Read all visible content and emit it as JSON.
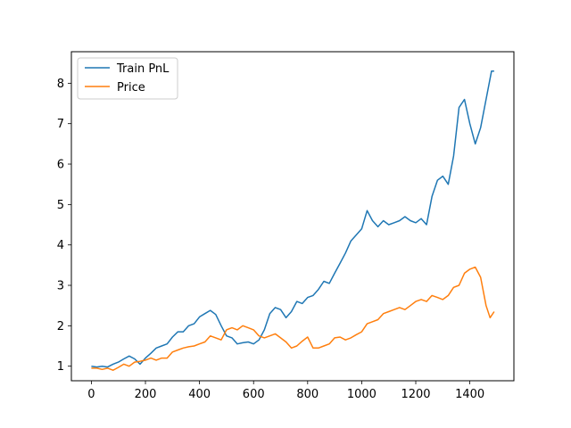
{
  "chart_data": {
    "type": "line",
    "title": "",
    "xlabel": "",
    "ylabel": "",
    "xlim": [
      -74,
      1563
    ],
    "ylim": [
      0.64,
      8.78
    ],
    "xticks": [
      0,
      200,
      400,
      600,
      800,
      1000,
      1200,
      1400
    ],
    "yticks": [
      1,
      2,
      3,
      4,
      5,
      6,
      7,
      8
    ],
    "grid": false,
    "legend_position": "top-left",
    "series": [
      {
        "name": "Train PnL",
        "color": "#1f77b4",
        "points": [
          [
            0,
            1.0
          ],
          [
            20,
            0.98
          ],
          [
            40,
            1.0
          ],
          [
            60,
            0.98
          ],
          [
            80,
            1.05
          ],
          [
            100,
            1.1
          ],
          [
            120,
            1.18
          ],
          [
            140,
            1.25
          ],
          [
            160,
            1.18
          ],
          [
            180,
            1.05
          ],
          [
            200,
            1.2
          ],
          [
            220,
            1.32
          ],
          [
            240,
            1.45
          ],
          [
            260,
            1.5
          ],
          [
            280,
            1.55
          ],
          [
            300,
            1.72
          ],
          [
            320,
            1.85
          ],
          [
            340,
            1.85
          ],
          [
            360,
            2.0
          ],
          [
            380,
            2.05
          ],
          [
            400,
            2.22
          ],
          [
            420,
            2.3
          ],
          [
            440,
            2.38
          ],
          [
            460,
            2.28
          ],
          [
            480,
            2.0
          ],
          [
            500,
            1.75
          ],
          [
            520,
            1.7
          ],
          [
            540,
            1.55
          ],
          [
            560,
            1.58
          ],
          [
            580,
            1.6
          ],
          [
            600,
            1.55
          ],
          [
            620,
            1.65
          ],
          [
            640,
            1.9
          ],
          [
            660,
            2.3
          ],
          [
            680,
            2.45
          ],
          [
            700,
            2.4
          ],
          [
            720,
            2.2
          ],
          [
            740,
            2.35
          ],
          [
            760,
            2.6
          ],
          [
            780,
            2.55
          ],
          [
            800,
            2.7
          ],
          [
            820,
            2.75
          ],
          [
            840,
            2.9
          ],
          [
            860,
            3.1
          ],
          [
            880,
            3.05
          ],
          [
            900,
            3.3
          ],
          [
            920,
            3.55
          ],
          [
            940,
            3.8
          ],
          [
            960,
            4.1
          ],
          [
            980,
            4.25
          ],
          [
            1000,
            4.4
          ],
          [
            1020,
            4.85
          ],
          [
            1040,
            4.6
          ],
          [
            1060,
            4.45
          ],
          [
            1080,
            4.6
          ],
          [
            1100,
            4.5
          ],
          [
            1120,
            4.55
          ],
          [
            1140,
            4.6
          ],
          [
            1160,
            4.7
          ],
          [
            1180,
            4.6
          ],
          [
            1200,
            4.55
          ],
          [
            1220,
            4.65
          ],
          [
            1240,
            4.5
          ],
          [
            1260,
            5.2
          ],
          [
            1280,
            5.6
          ],
          [
            1300,
            5.7
          ],
          [
            1320,
            5.5
          ],
          [
            1340,
            6.2
          ],
          [
            1360,
            7.4
          ],
          [
            1380,
            7.6
          ],
          [
            1400,
            7.0
          ],
          [
            1420,
            6.5
          ],
          [
            1440,
            6.9
          ],
          [
            1460,
            7.6
          ],
          [
            1480,
            8.3
          ],
          [
            1490,
            8.3
          ]
        ]
      },
      {
        "name": "Price",
        "color": "#ff7f0e",
        "points": [
          [
            0,
            0.95
          ],
          [
            20,
            0.95
          ],
          [
            40,
            0.92
          ],
          [
            60,
            0.95
          ],
          [
            80,
            0.9
          ],
          [
            100,
            0.97
          ],
          [
            120,
            1.05
          ],
          [
            140,
            1.0
          ],
          [
            160,
            1.1
          ],
          [
            180,
            1.12
          ],
          [
            200,
            1.15
          ],
          [
            220,
            1.2
          ],
          [
            240,
            1.15
          ],
          [
            260,
            1.2
          ],
          [
            280,
            1.2
          ],
          [
            300,
            1.35
          ],
          [
            320,
            1.4
          ],
          [
            340,
            1.45
          ],
          [
            360,
            1.48
          ],
          [
            380,
            1.5
          ],
          [
            400,
            1.55
          ],
          [
            420,
            1.6
          ],
          [
            440,
            1.75
          ],
          [
            460,
            1.7
          ],
          [
            480,
            1.65
          ],
          [
            500,
            1.9
          ],
          [
            520,
            1.95
          ],
          [
            540,
            1.9
          ],
          [
            560,
            2.0
          ],
          [
            580,
            1.95
          ],
          [
            600,
            1.9
          ],
          [
            620,
            1.75
          ],
          [
            640,
            1.7
          ],
          [
            660,
            1.75
          ],
          [
            680,
            1.8
          ],
          [
            700,
            1.7
          ],
          [
            720,
            1.6
          ],
          [
            740,
            1.45
          ],
          [
            760,
            1.5
          ],
          [
            780,
            1.62
          ],
          [
            800,
            1.72
          ],
          [
            820,
            1.45
          ],
          [
            840,
            1.45
          ],
          [
            860,
            1.5
          ],
          [
            880,
            1.55
          ],
          [
            900,
            1.7
          ],
          [
            920,
            1.72
          ],
          [
            940,
            1.65
          ],
          [
            960,
            1.7
          ],
          [
            980,
            1.78
          ],
          [
            1000,
            1.85
          ],
          [
            1020,
            2.05
          ],
          [
            1040,
            2.1
          ],
          [
            1060,
            2.15
          ],
          [
            1080,
            2.3
          ],
          [
            1100,
            2.35
          ],
          [
            1120,
            2.4
          ],
          [
            1140,
            2.45
          ],
          [
            1160,
            2.4
          ],
          [
            1180,
            2.5
          ],
          [
            1200,
            2.6
          ],
          [
            1220,
            2.65
          ],
          [
            1240,
            2.6
          ],
          [
            1260,
            2.75
          ],
          [
            1280,
            2.7
          ],
          [
            1300,
            2.65
          ],
          [
            1320,
            2.75
          ],
          [
            1340,
            2.95
          ],
          [
            1360,
            3.0
          ],
          [
            1380,
            3.3
          ],
          [
            1400,
            3.4
          ],
          [
            1420,
            3.45
          ],
          [
            1440,
            3.2
          ],
          [
            1460,
            2.5
          ],
          [
            1475,
            2.2
          ],
          [
            1490,
            2.35
          ]
        ]
      }
    ]
  }
}
